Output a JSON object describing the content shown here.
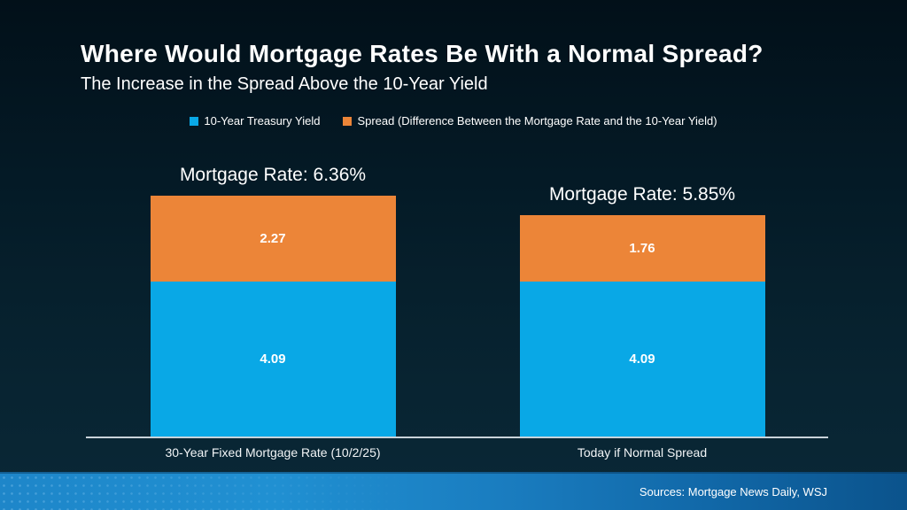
{
  "slide": {
    "title": "Where Would Mortgage Rates Be With a Normal Spread?",
    "subtitle": "The Increase in the Spread Above the 10-Year Yield",
    "source": "Sources: Mortgage News Daily, WSJ"
  },
  "colors": {
    "background_top": "#021019",
    "background_bottom": "#0a2837",
    "bar_blue": "#09a8e6",
    "bar_orange": "#ec8538",
    "axis_line": "#c9d3da",
    "footer_left": "#2090d2",
    "footer_right": "#0b538c",
    "text": "#ffffff"
  },
  "chart_data": {
    "type": "bar",
    "stacked": true,
    "title": "Where Would Mortgage Rates Be With a Normal Spread?",
    "subtitle": "The Increase in the Spread Above the 10-Year Yield",
    "categories": [
      "30-Year Fixed Mortgage Rate (10/2/25)",
      "Today if Normal Spread"
    ],
    "series": [
      {
        "name": "10-Year Treasury Yield",
        "color": "#09a8e6",
        "values": [
          4.09,
          4.09
        ]
      },
      {
        "name": "Spread (Difference Between the Mortgage Rate and the 10-Year Yield)",
        "color": "#ec8538",
        "values": [
          2.27,
          1.76
        ]
      }
    ],
    "totals": [
      6.36,
      5.85
    ],
    "bar_labels": [
      "Mortgage Rate: 6.36%",
      "Mortgage Rate: 5.85%"
    ],
    "xlabel": "",
    "ylabel": "",
    "ylim": [
      0,
      6.5
    ],
    "grid": false,
    "legend_position": "top"
  }
}
